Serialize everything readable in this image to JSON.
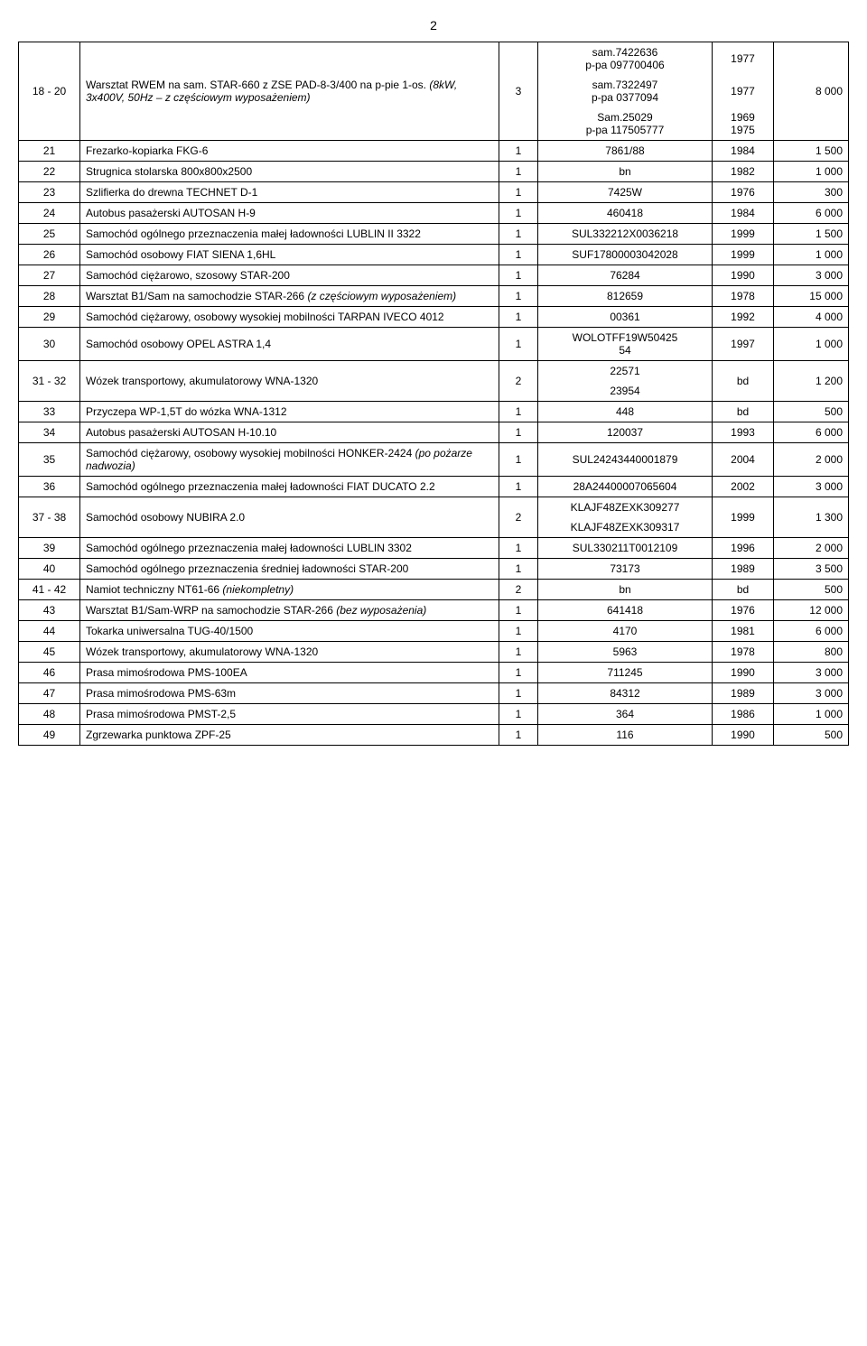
{
  "page_number": "2",
  "rows": [
    {
      "num": "18 - 20",
      "desc": "Warsztat RWEM na sam. STAR-660 z ZSE PAD-8-3/400 na p-pie 1-os. <span class='italic'>(8kW, 3x400V, 50Hz – z częściowym wyposażeniem)</span>",
      "qty": "3",
      "serial_lines": [
        {
          "s": "sam.7422636<br>p-pa 097700406",
          "y": "1977"
        },
        {
          "s": "sam.7322497<br>p-pa 0377094",
          "y": "1977"
        },
        {
          "s": "Sam.25029<br>p-pa 117505777",
          "y": "1969<br>1975"
        }
      ],
      "price": "8 000"
    },
    {
      "num": "21",
      "desc": "Frezarko-kopiarka FKG-6",
      "qty": "1",
      "serial": "7861/88",
      "year": "1984",
      "price": "1 500"
    },
    {
      "num": "22",
      "desc": "Strugnica stolarska 800x800x2500",
      "qty": "1",
      "serial": "bn",
      "year": "1982",
      "price": "1 000"
    },
    {
      "num": "23",
      "desc": "Szlifierka do drewna TECHNET D-1",
      "qty": "1",
      "serial": "7425W",
      "year": "1976",
      "price": "300"
    },
    {
      "num": "24",
      "desc": "Autobus pasażerski AUTOSAN H-9",
      "qty": "1",
      "serial": "460418",
      "year": "1984",
      "price": "6 000"
    },
    {
      "num": "25",
      "desc": "Samochód ogólnego przeznaczenia małej ładowności LUBLIN II 3322",
      "qty": "1",
      "serial": "SUL332212X0036218",
      "year": "1999",
      "price": "1 500"
    },
    {
      "num": "26",
      "desc": "Samochód osobowy FIAT SIENA 1,6HL",
      "qty": "1",
      "serial": "SUF17800003042028",
      "year": "1999",
      "price": "1 000"
    },
    {
      "num": "27",
      "desc": "Samochód ciężarowo, szosowy STAR-200",
      "qty": "1",
      "serial": "76284",
      "year": "1990",
      "price": "3 000"
    },
    {
      "num": "28",
      "desc": "Warsztat B1/Sam na samochodzie STAR-266 <span class='italic'>(z częściowym wyposażeniem)</span>",
      "qty": "1",
      "serial": "812659",
      "year": "1978",
      "price": "15 000"
    },
    {
      "num": "29",
      "desc": "Samochód ciężarowy, osobowy wysokiej mobilności TARPAN IVECO 4012",
      "qty": "1",
      "serial": "00361",
      "year": "1992",
      "price": "4 000"
    },
    {
      "num": "30",
      "desc": "Samochód osobowy OPEL ASTRA 1,4",
      "qty": "1",
      "serial": "WOLOTFF19W50425<br>54",
      "year": "1997",
      "price": "1 000"
    },
    {
      "num": "31 - 32",
      "desc": "Wózek transportowy, akumulatorowy WNA-1320",
      "qty": "2",
      "serial_lines": [
        {
          "s": "22571"
        },
        {
          "s": "23954"
        }
      ],
      "year": "bd",
      "price": "1 200"
    },
    {
      "num": "33",
      "desc": "Przyczepa WP-1,5T do wózka WNA-1312",
      "qty": "1",
      "serial": "448",
      "year": "bd",
      "price": "500"
    },
    {
      "num": "34",
      "desc": "Autobus pasażerski AUTOSAN H-10.10",
      "qty": "1",
      "serial": "120037",
      "year": "1993",
      "price": "6 000"
    },
    {
      "num": "35",
      "desc": "Samochód ciężarowy, osobowy wysokiej mobilności HONKER-2424 <span class='italic'>(po pożarze nadwozia)</span>",
      "qty": "1",
      "serial": "SUL24243440001879",
      "year": "2004",
      "price": "2 000"
    },
    {
      "num": "36",
      "desc": "Samochód ogólnego przeznaczenia małej ładowności FIAT DUCATO 2.2",
      "qty": "1",
      "serial": "28A24400007065604",
      "year": "2002",
      "price": "3 000"
    },
    {
      "num": "37 - 38",
      "desc": "Samochód osobowy NUBIRA 2.0",
      "qty": "2",
      "serial_lines": [
        {
          "s": "KLAJF48ZEXK309277"
        },
        {
          "s": "KLAJF48ZEXK309317"
        }
      ],
      "year": "1999",
      "price": "1 300"
    },
    {
      "num": "39",
      "desc": "Samochód ogólnego przeznaczenia małej ładowności LUBLIN 3302",
      "qty": "1",
      "serial": "SUL330211T0012109",
      "year": "1996",
      "price": "2 000"
    },
    {
      "num": "40",
      "desc": "Samochód ogólnego przeznaczenia średniej ładowności STAR-200",
      "qty": "1",
      "serial": "73173",
      "year": "1989",
      "price": "3 500"
    },
    {
      "num": "41 - 42",
      "desc": "Namiot techniczny NT61-66 <span class='italic'>(niekompletny)</span>",
      "qty": "2",
      "serial": "bn",
      "year": "bd",
      "price": "500"
    },
    {
      "num": "43",
      "desc": "Warsztat B1/Sam-WRP na samochodzie STAR-266 <span class='italic'>(bez wyposażenia)</span>",
      "qty": "1",
      "serial": "641418",
      "year": "1976",
      "price": "12 000"
    },
    {
      "num": "44",
      "desc": "Tokarka uniwersalna TUG-40/1500",
      "qty": "1",
      "serial": "4170",
      "year": "1981",
      "price": "6 000"
    },
    {
      "num": "45",
      "desc": "Wózek transportowy, akumulatorowy WNA-1320",
      "qty": "1",
      "serial": "5963",
      "year": "1978",
      "price": "800"
    },
    {
      "num": "46",
      "desc": "Prasa mimośrodowa PMS-100EA",
      "qty": "1",
      "serial": "711245",
      "year": "1990",
      "price": "3 000"
    },
    {
      "num": "47",
      "desc": "Prasa mimośrodowa PMS-63m",
      "qty": "1",
      "serial": "84312",
      "year": "1989",
      "price": "3 000"
    },
    {
      "num": "48",
      "desc": "Prasa mimośrodowa PMST-2,5",
      "qty": "1",
      "serial": "364",
      "year": "1986",
      "price": "1 000"
    },
    {
      "num": "49",
      "desc": "Zgrzewarka punktowa ZPF-25",
      "qty": "1",
      "serial": "116",
      "year": "1990",
      "price": "500"
    }
  ]
}
